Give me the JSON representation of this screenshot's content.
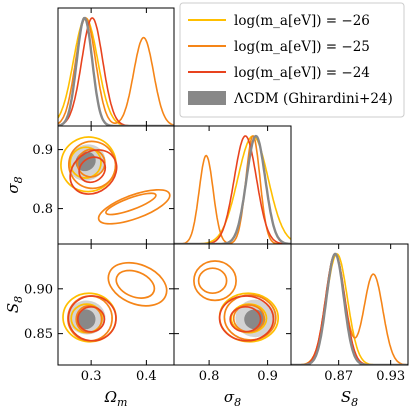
{
  "chart_data": {
    "type": "corner",
    "parameters": [
      "Ωm",
      "σ8",
      "S8"
    ],
    "axis_labels": {
      "x": [
        "Ω_m",
        "σ_8",
        "S_8"
      ],
      "y": [
        "",
        "σ_8",
        "S_8"
      ]
    },
    "ranges": {
      "omega_m": [
        0.24,
        0.45
      ],
      "sigma8": [
        0.74,
        0.94
      ],
      "s8": [
        0.815,
        0.95
      ]
    },
    "ticks": {
      "omega_m": {
        "values": [
          0.3,
          0.4
        ],
        "labels": [
          "0.3",
          "0.4"
        ]
      },
      "sigma8": {
        "values": [
          0.8,
          0.9
        ],
        "labels": [
          "0.8",
          "0.9"
        ]
      },
      "s8_x": {
        "values": [
          0.87,
          0.93
        ],
        "labels": [
          "0.87",
          "0.93"
        ]
      },
      "s8_y": {
        "values": [
          0.85,
          0.9
        ],
        "labels": [
          "0.85",
          "0.90"
        ]
      }
    },
    "legend": {
      "placement": "top-right",
      "entries": [
        {
          "label": "log(m_a[eV]) = −26",
          "color": "#ffbf00",
          "kind": "line"
        },
        {
          "label": "log(m_a[eV]) = −25",
          "color": "#f58518",
          "kind": "line"
        },
        {
          "label": "log(m_a[eV]) = −24",
          "color": "#e8431e",
          "kind": "line"
        },
        {
          "label": "ΛCDM (Ghirardini+24)",
          "color": "#888888",
          "kind": "patch"
        }
      ]
    },
    "series": [
      {
        "name": "log(m_a[eV]) = −26",
        "color": "#ffbf00",
        "mean": {
          "omega_m": 0.29,
          "sigma8": 0.875,
          "s8": 0.868
        },
        "std": {
          "omega_m": 0.022,
          "sigma8": 0.026,
          "s8": 0.012
        },
        "contours": {
          "om_sig8": [
            [
              {
                "cx": 0.29,
                "cy": 0.878,
                "rx": 0.028,
                "ry": 0.026,
                "tilt": -35
              },
              {
                "cx": 0.295,
                "cy": 0.875,
                "rx": 0.05,
                "ry": 0.046,
                "tilt": -35
              }
            ]
          ],
          "om_s8": [
            [
              {
                "cx": 0.292,
                "cy": 0.867,
                "rx": 0.028,
                "ry": 0.016,
                "tilt": 0
              },
              {
                "cx": 0.297,
                "cy": 0.868,
                "rx": 0.048,
                "ry": 0.027,
                "tilt": 5
              }
            ]
          ],
          "sig8_s8": [
            [
              {
                "cx": 0.868,
                "cy": 0.867,
                "rx": 0.03,
                "ry": 0.016,
                "tilt": 0
              },
              {
                "cx": 0.868,
                "cy": 0.868,
                "rx": 0.05,
                "ry": 0.027,
                "tilt": 3
              }
            ]
          ]
        }
      },
      {
        "name": "log(m_a[eV]) = −25",
        "color": "#f58518",
        "modes": [
          {
            "weight": 0.55,
            "mean": {
              "omega_m": 0.29,
              "sigma8": 0.875,
              "s8": 0.866
            }
          },
          {
            "weight": 0.45,
            "mean": {
              "omega_m": 0.395,
              "sigma8": 0.795,
              "s8": 0.91
            }
          }
        ],
        "std": {
          "omega_m": 0.018,
          "sigma8": 0.012,
          "s8": 0.011
        },
        "contours": {
          "om_sig8": [
            [
              {
                "cx": 0.3,
                "cy": 0.877,
                "rx": 0.025,
                "ry": 0.023,
                "tilt": -35
              },
              {
                "cx": 0.302,
                "cy": 0.874,
                "rx": 0.042,
                "ry": 0.04,
                "tilt": -35
              }
            ],
            [
              {
                "cx": 0.372,
                "cy": 0.808,
                "rx": 0.048,
                "ry": 0.01,
                "tilt": -20
              },
              {
                "cx": 0.378,
                "cy": 0.803,
                "rx": 0.068,
                "ry": 0.02,
                "tilt": -20
              }
            ]
          ],
          "om_s8": [
            [
              {
                "cx": 0.296,
                "cy": 0.866,
                "rx": 0.023,
                "ry": 0.015,
                "tilt": 0
              },
              {
                "cx": 0.298,
                "cy": 0.867,
                "rx": 0.04,
                "ry": 0.025,
                "tilt": 5
              }
            ],
            [
              {
                "cx": 0.38,
                "cy": 0.905,
                "rx": 0.036,
                "ry": 0.014,
                "tilt": 22
              },
              {
                "cx": 0.384,
                "cy": 0.905,
                "rx": 0.055,
                "ry": 0.022,
                "tilt": 22
              }
            ]
          ],
          "sig8_s8": [
            [
              {
                "cx": 0.868,
                "cy": 0.867,
                "rx": 0.026,
                "ry": 0.015,
                "tilt": 0
              },
              {
                "cx": 0.87,
                "cy": 0.868,
                "rx": 0.044,
                "ry": 0.025,
                "tilt": 3
              }
            ],
            [
              {
                "cx": 0.806,
                "cy": 0.909,
                "rx": 0.024,
                "ry": 0.014,
                "tilt": 0
              },
              {
                "cx": 0.81,
                "cy": 0.909,
                "rx": 0.036,
                "ry": 0.022,
                "tilt": 0
              }
            ]
          ]
        }
      },
      {
        "name": "log(m_a[eV]) = −24",
        "color": "#e8431e",
        "mean": {
          "omega_m": 0.302,
          "sigma8": 0.862,
          "s8": 0.866
        },
        "std": {
          "omega_m": 0.019,
          "sigma8": 0.019,
          "s8": 0.011
        },
        "contours": {
          "om_sig8": [
            [
              {
                "cx": 0.302,
                "cy": 0.866,
                "rx": 0.025,
                "ry": 0.02,
                "tilt": -38
              },
              {
                "cx": 0.304,
                "cy": 0.862,
                "rx": 0.045,
                "ry": 0.034,
                "tilt": -38
              }
            ]
          ],
          "om_s8": [
            [
              {
                "cx": 0.3,
                "cy": 0.866,
                "rx": 0.024,
                "ry": 0.014,
                "tilt": 0
              },
              {
                "cx": 0.302,
                "cy": 0.867,
                "rx": 0.043,
                "ry": 0.025,
                "tilt": 5
              }
            ]
          ],
          "sig8_s8": [
            [
              {
                "cx": 0.862,
                "cy": 0.866,
                "rx": 0.026,
                "ry": 0.014,
                "tilt": 0
              },
              {
                "cx": 0.864,
                "cy": 0.867,
                "rx": 0.046,
                "ry": 0.025,
                "tilt": 3
              }
            ]
          ]
        }
      },
      {
        "name": "ΛCDM (Ghirardini+24)",
        "color": "#888888",
        "fill": "#d3d3d3",
        "mean": {
          "omega_m": 0.288,
          "sigma8": 0.88,
          "s8": 0.866
        },
        "std": {
          "omega_m": 0.014,
          "sigma8": 0.016,
          "s8": 0.01
        },
        "contours": {
          "om_sig8": [
            [
              {
                "cx": 0.29,
                "cy": 0.88,
                "rx": 0.019,
                "ry": 0.016,
                "tilt": -35
              },
              {
                "cx": 0.292,
                "cy": 0.878,
                "rx": 0.035,
                "ry": 0.03,
                "tilt": -35
              }
            ]
          ],
          "om_s8": [
            [
              {
                "cx": 0.29,
                "cy": 0.866,
                "rx": 0.018,
                "ry": 0.011,
                "tilt": 0
              },
              {
                "cx": 0.292,
                "cy": 0.868,
                "rx": 0.034,
                "ry": 0.019,
                "tilt": 5
              }
            ]
          ],
          "sig8_s8": [
            [
              {
                "cx": 0.878,
                "cy": 0.866,
                "rx": 0.018,
                "ry": 0.011,
                "tilt": 0
              },
              {
                "cx": 0.879,
                "cy": 0.867,
                "rx": 0.034,
                "ry": 0.021,
                "tilt": 3
              }
            ]
          ]
        }
      }
    ]
  }
}
